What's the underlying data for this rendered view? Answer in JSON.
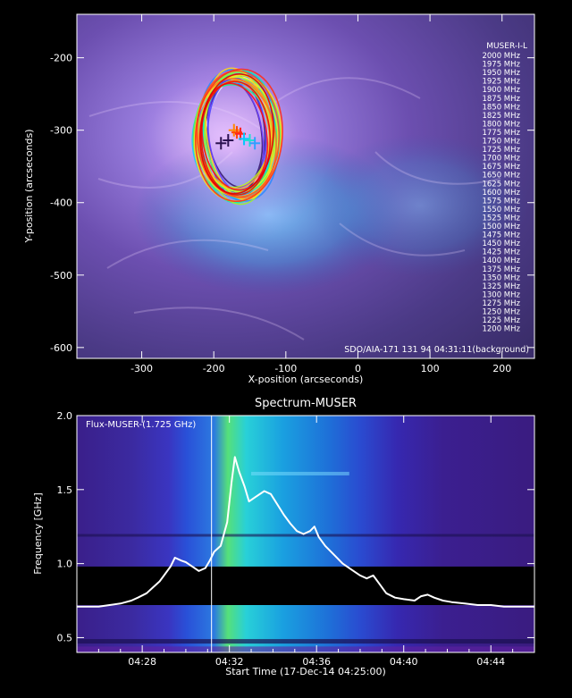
{
  "chart_data": [
    {
      "type": "scatter",
      "title": "",
      "xlabel": "X-position (arcseconds)",
      "ylabel": "Y-position (arcseconds)",
      "xlim": [
        -390,
        245
      ],
      "ylim": [
        -615,
        -140
      ],
      "xticks": [
        -300,
        -200,
        -100,
        0,
        100,
        200
      ],
      "yticks": [
        -200,
        -300,
        -400,
        -500,
        -600
      ],
      "background_label": "SDO/AIA-171 131   94 04:31:11(background)",
      "legend_title": "MUSER-I-L",
      "legend_position": "right",
      "series": [
        {
          "name": "2000 MHz",
          "color": "#ffffff"
        },
        {
          "name": "1975 MHz",
          "color": "#ffffff"
        },
        {
          "name": "1950 MHz",
          "color": "#e8e0f8"
        },
        {
          "name": "1925 MHz",
          "color": "#d8c8f0"
        },
        {
          "name": "1900 MHz",
          "color": "#a070ff"
        },
        {
          "name": "1875 MHz",
          "color": "#8a50ff"
        },
        {
          "name": "1850 MHz",
          "color": "#6a40ff"
        },
        {
          "name": "1825 MHz",
          "color": "#4a40ff"
        },
        {
          "name": "1800 MHz",
          "color": "#3a6aff"
        },
        {
          "name": "1775 MHz",
          "color": "#2a8aff"
        },
        {
          "name": "1750 MHz",
          "color": "#20aaff"
        },
        {
          "name": "1725 MHz",
          "color": "#18c8ff"
        },
        {
          "name": "1700 MHz",
          "color": "#10e0f0"
        },
        {
          "name": "1675 MHz",
          "color": "#10f0d8"
        },
        {
          "name": "1650 MHz",
          "color": "#10f0b0"
        },
        {
          "name": "1625 MHz",
          "color": "#20f090"
        },
        {
          "name": "1600 MHz",
          "color": "#40f070"
        },
        {
          "name": "1575 MHz",
          "color": "#60f050"
        },
        {
          "name": "1550 MHz",
          "color": "#80f040"
        },
        {
          "name": "1525 MHz",
          "color": "#a0f030"
        },
        {
          "name": "1500 MHz",
          "color": "#c0f020"
        },
        {
          "name": "1475 MHz",
          "color": "#e0f020"
        },
        {
          "name": "1450 MHz",
          "color": "#f0f020"
        },
        {
          "name": "1425 MHz",
          "color": "#f8e020"
        },
        {
          "name": "1400 MHz",
          "color": "#ffd020"
        },
        {
          "name": "1375 MHz",
          "color": "#ffb020"
        },
        {
          "name": "1350 MHz",
          "color": "#ff9020"
        },
        {
          "name": "1325 MHz",
          "color": "#ff7020"
        },
        {
          "name": "1300 MHz",
          "color": "#ff5020"
        },
        {
          "name": "1275 MHz",
          "color": "#ff3018"
        },
        {
          "name": "1250 MHz",
          "color": "#ff1010"
        },
        {
          "name": "1225 MHz",
          "color": "#ee0808"
        },
        {
          "name": "1200 MHz",
          "color": "#dd0000"
        }
      ],
      "source_centroids": [
        {
          "x": -172,
          "y": -300
        },
        {
          "x": -168,
          "y": -303
        },
        {
          "x": -163,
          "y": -305
        },
        {
          "x": -158,
          "y": -312
        },
        {
          "x": -150,
          "y": -314
        },
        {
          "x": -143,
          "y": -318
        },
        {
          "x": -190,
          "y": -318
        },
        {
          "x": -180,
          "y": -314
        }
      ]
    },
    {
      "type": "heatmap",
      "title": "Spectrum-MUSER",
      "xlabel": "Start Time (17-Dec-14 04:25:00)",
      "ylabel": "Frequency [GHz]",
      "xlim": [
        25.0,
        46.0
      ],
      "ylim": [
        0.4,
        2.0
      ],
      "xticks": [
        28,
        32,
        36,
        40,
        44
      ],
      "xtick_labels": [
        "04:28",
        "04:32",
        "04:36",
        "04:40",
        "04:44"
      ],
      "yticks": [
        0.5,
        1.0,
        1.5,
        2.0
      ],
      "ytick_labels": [
        "0.5",
        "1.0",
        "1.5",
        "2.0"
      ],
      "vertical_marker_time": 31.18,
      "lightcurve": {
        "name": "Flux-MUSER-(1.725 GHz)",
        "color": "#ffffff",
        "x": [
          25.0,
          25.5,
          26.0,
          26.5,
          27.0,
          27.5,
          27.8,
          28.2,
          28.5,
          28.8,
          29.0,
          29.3,
          29.5,
          29.8,
          30.0,
          30.3,
          30.6,
          30.9,
          31.1,
          31.3,
          31.6,
          31.9,
          32.1,
          32.25,
          32.45,
          32.7,
          32.9,
          33.2,
          33.6,
          33.9,
          34.2,
          34.5,
          34.8,
          35.1,
          35.4,
          35.7,
          35.9,
          36.1,
          36.4,
          36.8,
          37.2,
          37.6,
          38.0,
          38.3,
          38.6,
          38.9,
          39.2,
          39.6,
          40.0,
          40.5,
          40.8,
          41.1,
          41.4,
          41.8,
          42.2,
          42.8,
          43.4,
          44.0,
          44.6,
          45.2,
          46.0
        ],
        "y": [
          0.71,
          0.71,
          0.71,
          0.72,
          0.73,
          0.75,
          0.77,
          0.8,
          0.84,
          0.88,
          0.92,
          0.98,
          1.04,
          1.02,
          1.01,
          0.98,
          0.95,
          0.97,
          1.02,
          1.08,
          1.12,
          1.28,
          1.55,
          1.72,
          1.62,
          1.52,
          1.42,
          1.45,
          1.49,
          1.47,
          1.4,
          1.33,
          1.27,
          1.22,
          1.2,
          1.22,
          1.25,
          1.18,
          1.12,
          1.06,
          1.0,
          0.96,
          0.92,
          0.9,
          0.92,
          0.86,
          0.8,
          0.77,
          0.76,
          0.75,
          0.78,
          0.79,
          0.77,
          0.75,
          0.74,
          0.73,
          0.72,
          0.72,
          0.71,
          0.71,
          0.71
        ]
      }
    }
  ]
}
